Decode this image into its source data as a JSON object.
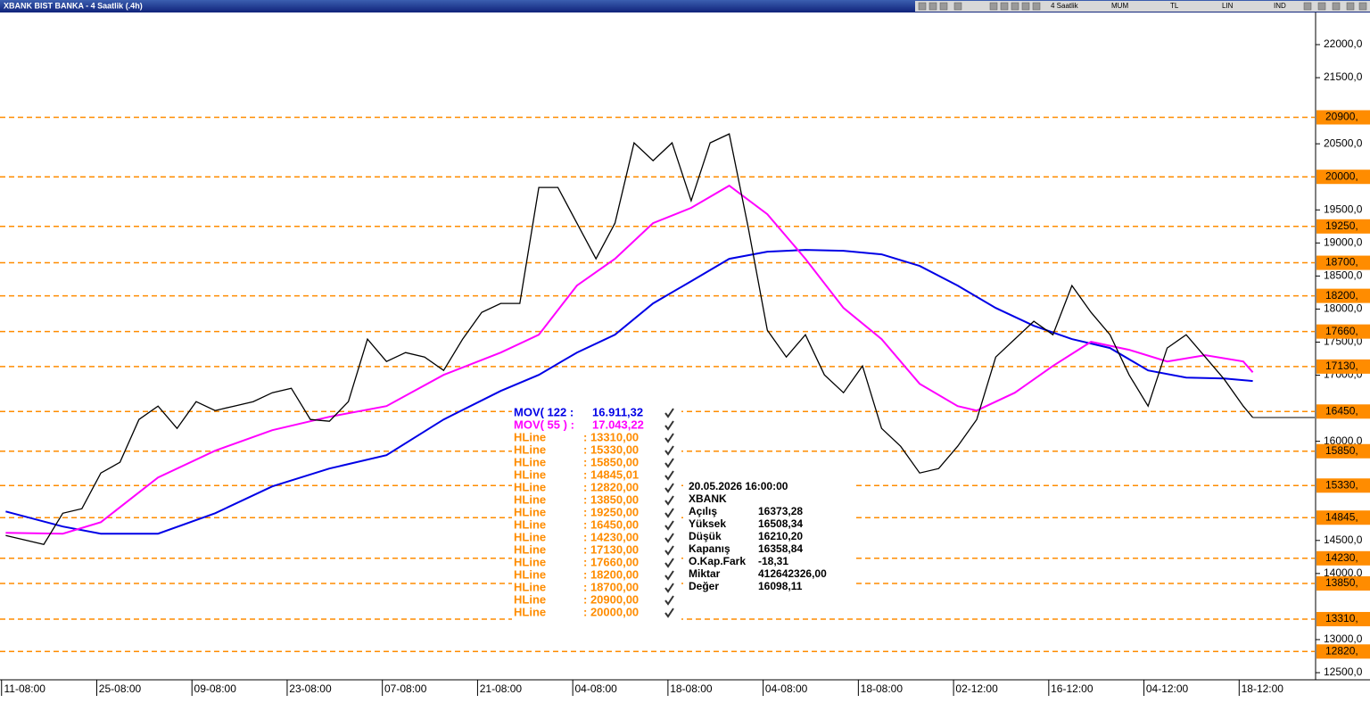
{
  "window": {
    "title": "XBANK BIST BANKA - 4 Saatlik (.4h)",
    "toolbar": [
      "4 Saatlik",
      "MUM",
      "TL",
      "LIN",
      "IND"
    ]
  },
  "chart_data": {
    "type": "line",
    "xlim": [
      -2.6,
      135.5
    ],
    "ylim": [
      12392,
      22486
    ],
    "xticks": [
      {
        "value": 0,
        "label": "11-08:00"
      },
      {
        "value": 10,
        "label": "25-08:00"
      },
      {
        "value": 20,
        "label": "09-08:00"
      },
      {
        "value": 30,
        "label": "23-08:00"
      },
      {
        "value": 40,
        "label": "07-08:00"
      },
      {
        "value": 50,
        "label": "21-08:00"
      },
      {
        "value": 60,
        "label": "04-08:00"
      },
      {
        "value": 70,
        "label": "18-08:00"
      },
      {
        "value": 80,
        "label": "04-08:00"
      },
      {
        "value": 90,
        "label": "18-08:00"
      },
      {
        "value": 100,
        "label": "02-12:00"
      },
      {
        "value": 110,
        "label": "16-12:00"
      },
      {
        "value": 120,
        "label": "04-12:00"
      },
      {
        "value": 130,
        "label": "18-12:00"
      }
    ],
    "yticks": [
      {
        "value": 22000,
        "label": "22000,0"
      },
      {
        "value": 21500,
        "label": "21500,0"
      },
      {
        "value": 20500,
        "label": "20500,0"
      },
      {
        "value": 19500,
        "label": "19500,0"
      },
      {
        "value": 19000,
        "label": "19000,0"
      },
      {
        "value": 18500,
        "label": "18500,0"
      },
      {
        "value": 18000,
        "label": "18000,0"
      },
      {
        "value": 17500,
        "label": "17500,0"
      },
      {
        "value": 17000,
        "label": "17000,0"
      },
      {
        "value": 16000,
        "label": "16000,0"
      },
      {
        "value": 14500,
        "label": "14500,0"
      },
      {
        "value": 14000,
        "label": "14000,0"
      },
      {
        "value": 13000,
        "label": "13000,0"
      },
      {
        "value": 12500,
        "label": "12500,0"
      }
    ],
    "series": [
      {
        "color": "#000000",
        "x": [
          -2,
          0,
          2,
          4,
          6,
          8,
          10,
          12,
          14,
          16,
          18,
          20,
          22,
          24,
          26,
          28,
          30,
          32,
          34,
          36,
          38,
          40,
          42,
          44,
          46,
          48,
          50,
          52,
          54,
          56,
          58,
          60,
          62,
          64,
          66,
          68,
          70,
          72,
          74,
          76,
          78,
          80,
          82,
          84,
          86,
          88,
          90,
          92,
          94,
          96,
          98,
          100,
          102,
          104,
          106,
          108,
          110,
          112,
          114,
          116,
          118,
          120,
          122,
          124,
          126,
          128,
          129
        ],
        "values": [
          14575,
          14507,
          14440,
          14912,
          14980,
          15520,
          15682,
          16330,
          16532,
          16195,
          16600,
          16465,
          16532,
          16600,
          16735,
          16802,
          16330,
          16303,
          16600,
          17545,
          17207,
          17342,
          17275,
          17072,
          17545,
          17950,
          18085,
          18085,
          19840,
          19840,
          19300,
          18760,
          19300,
          20515,
          20245,
          20515,
          19637,
          20515,
          20650,
          19232,
          17680,
          17275,
          17612,
          17005,
          16735,
          17140,
          16195,
          15925,
          15520,
          15587,
          15925,
          16330,
          17275,
          17545,
          17815,
          17612,
          18355,
          17950,
          17612,
          17005,
          16532,
          17410,
          17612,
          17275,
          16937,
          16532,
          16359
        ]
      },
      {
        "name": "MOV( 122 :",
        "legend_label": "16.911,32",
        "color": "#0000e6",
        "x": [
          -2,
          4,
          8,
          14,
          20,
          26,
          32,
          38,
          44,
          50,
          54,
          58,
          62,
          66,
          70,
          74,
          78,
          82,
          86,
          90,
          94,
          98,
          102,
          106,
          110,
          114,
          118,
          122,
          126,
          129
        ],
        "values": [
          14939,
          14710,
          14602,
          14602,
          14912,
          15317,
          15587,
          15790,
          16330,
          16762,
          17005,
          17342,
          17612,
          18085,
          18422,
          18760,
          18868,
          18895,
          18881,
          18827,
          18652,
          18355,
          18017,
          17747,
          17545,
          17410,
          17072,
          16964,
          16951,
          16911.32
        ]
      },
      {
        "name": "MOV( 55 ) :",
        "legend_label": "17.043,22",
        "color": "#ff00ff",
        "x": [
          -2,
          4,
          8,
          14,
          20,
          26,
          32,
          38,
          44,
          50,
          54,
          58,
          62,
          66,
          70,
          74,
          78,
          82,
          86,
          90,
          94,
          98,
          100,
          104,
          108,
          112,
          116,
          120,
          124,
          128,
          129
        ],
        "values": [
          14616,
          14602,
          14777,
          15452,
          15857,
          16168,
          16370,
          16532,
          17005,
          17342,
          17612,
          18355,
          18760,
          19300,
          19530,
          19867,
          19435,
          18760,
          18017,
          17545,
          16870,
          16532,
          16465,
          16735,
          17140,
          17505,
          17383,
          17207,
          17302,
          17207,
          17043.22
        ]
      }
    ],
    "hline_color": "#ff8c00",
    "hlines": [
      {
        "name": "HLine",
        "value": 13310,
        "label": ": 13310,00",
        "axis_label": "13310,"
      },
      {
        "name": "HLine",
        "value": 15330,
        "label": ": 15330,00",
        "axis_label": "15330,"
      },
      {
        "name": "HLine",
        "value": 15850,
        "label": ": 15850,00",
        "axis_label": "15850,"
      },
      {
        "name": "HLine",
        "value": 14845.01,
        "label": ": 14845,01",
        "axis_label": "14845,"
      },
      {
        "name": "HLine",
        "value": 12820,
        "label": ": 12820,00",
        "axis_label": "12820,"
      },
      {
        "name": "HLine",
        "value": 13850,
        "label": ": 13850,00",
        "axis_label": "13850,"
      },
      {
        "name": "HLine",
        "value": 19250,
        "label": ": 19250,00",
        "axis_label": "19250,"
      },
      {
        "name": "HLine",
        "value": 16450,
        "label": ": 16450,00",
        "axis_label": "16450,"
      },
      {
        "name": "HLine",
        "value": 14230,
        "label": ": 14230,00",
        "axis_label": "14230,"
      },
      {
        "name": "HLine",
        "value": 17130,
        "label": ": 17130,00",
        "axis_label": "17130,"
      },
      {
        "name": "HLine",
        "value": 17660,
        "label": ": 17660,00",
        "axis_label": "17660,"
      },
      {
        "name": "HLine",
        "value": 18200,
        "label": ": 18200,00",
        "axis_label": "18200,"
      },
      {
        "name": "HLine",
        "value": 18700,
        "label": ": 18700,00",
        "axis_label": "18700,"
      },
      {
        "name": "HLine",
        "value": 20900,
        "label": ": 20900,00",
        "axis_label": "20900,"
      },
      {
        "name": "HLine",
        "value": 20000,
        "label": ": 20000,00",
        "axis_label": "20000,"
      }
    ]
  },
  "info_panel": {
    "datetime": "20.05.2026  16:00:00",
    "symbol": "XBANK",
    "rows": [
      [
        "Açılış",
        "16373,28"
      ],
      [
        "Yüksek",
        "16508,34"
      ],
      [
        "Düşük",
        "16210,20"
      ],
      [
        "Kapanış",
        "16358,84"
      ],
      [
        "O.Kap.Fark",
        "-18,31"
      ],
      [
        "Miktar",
        "412642326,00"
      ],
      [
        "Değer",
        "16098,11"
      ]
    ]
  }
}
